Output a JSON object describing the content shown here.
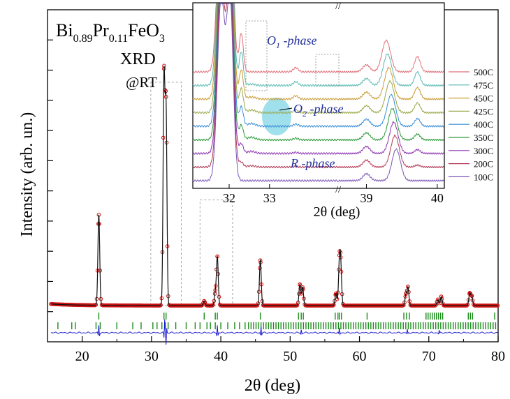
{
  "chart_data": [
    {
      "id": "main",
      "type": "line",
      "title": "",
      "compound": {
        "base1": "Bi",
        "sub1": "0.89",
        "base2": "Pr",
        "sub2": "0.11",
        "base3": "FeO",
        "sub3": "3"
      },
      "annotation_xrd": "XRD",
      "annotation_rt": "@RT",
      "xlabel": "2θ (deg)",
      "ylabel": "Intensity (arb. un.)",
      "xlim": [
        15,
        80
      ],
      "ylim": [
        -10,
        100
      ],
      "xticks": [
        20,
        30,
        40,
        50,
        60,
        70,
        80
      ],
      "yticks_unlabeled": [
        0,
        10,
        20,
        30,
        40,
        50,
        60,
        70,
        80,
        90
      ],
      "background_level": 2,
      "peaks": [
        {
          "x": 22.4,
          "h": 30
        },
        {
          "x": 31.8,
          "h": 74
        },
        {
          "x": 32.1,
          "h": 64
        },
        {
          "x": 37.6,
          "h": 1.5
        },
        {
          "x": 39.2,
          "h": 4
        },
        {
          "x": 39.5,
          "h": 16
        },
        {
          "x": 45.7,
          "h": 15
        },
        {
          "x": 51.4,
          "h": 7
        },
        {
          "x": 51.8,
          "h": 6
        },
        {
          "x": 56.6,
          "h": 4
        },
        {
          "x": 57.1,
          "h": 13
        },
        {
          "x": 57.3,
          "h": 12
        },
        {
          "x": 66.7,
          "h": 3.5
        },
        {
          "x": 67.0,
          "h": 6
        },
        {
          "x": 71.3,
          "h": 2
        },
        {
          "x": 71.8,
          "h": 3
        },
        {
          "x": 75.9,
          "h": 4
        },
        {
          "x": 76.2,
          "h": 3
        }
      ],
      "bragg_row1": [
        22.4,
        31.8,
        32.1,
        37.6,
        39.2,
        39.5,
        45.7,
        51.2,
        51.6,
        51.9,
        56.5,
        56.9,
        57.1,
        57.4,
        61.1,
        66.4,
        66.8,
        67.2,
        69.6,
        69.9,
        70.2,
        70.5,
        70.8,
        71.1,
        71.4,
        71.7,
        72.0,
        75.7,
        76.0,
        76.3,
        79.5
      ],
      "bragg_row2_dense_start": 44,
      "bragg_row2": [
        16.5,
        18.5,
        19.0,
        22.0,
        22.6,
        25.0,
        27.3,
        28.5,
        30.2,
        30.8,
        31.5,
        32.0,
        32.4,
        33.5,
        35.0,
        36.3,
        37.0,
        38.0,
        38.5,
        39.2,
        40.0,
        41.0,
        42.0,
        42.7,
        43.5
      ],
      "diff_spikes": [
        {
          "x": 22.4,
          "a": 2.5
        },
        {
          "x": 31.9,
          "a": 4.5
        },
        {
          "x": 32.1,
          "a": -4
        },
        {
          "x": 39.5,
          "a": 2.5
        },
        {
          "x": 45.8,
          "a": 2
        },
        {
          "x": 51.6,
          "a": 1
        },
        {
          "x": 57.1,
          "a": 1.5
        },
        {
          "x": 66.9,
          "a": 1
        },
        {
          "x": 71.5,
          "a": 0.8
        }
      ],
      "highlight_boxes": [
        {
          "x0": 29.9,
          "x1": 34.3,
          "y0": 2,
          "y1": 76
        },
        {
          "x0": 37.0,
          "x1": 41.7,
          "y0": 2,
          "y1": 37
        }
      ],
      "colors": {
        "observed": "#cc1111",
        "calculated": "#111111",
        "bragg": "#1a8c1a",
        "difference": "#1a1acc",
        "box": "#9aaa9a"
      }
    },
    {
      "id": "inset",
      "type": "line",
      "xlabel": "2θ (deg)",
      "xticks_left": [
        32,
        33
      ],
      "xticks_right": [
        39,
        40
      ],
      "xlim_left": [
        31.1,
        34.7
      ],
      "xlim_right": [
        38.6,
        40.1
      ],
      "break_symbol": "//",
      "series": [
        {
          "name": "500C",
          "color": "#e0707a"
        },
        {
          "name": "475C",
          "color": "#55b8b0"
        },
        {
          "name": "450C",
          "color": "#c99a30"
        },
        {
          "name": "425C",
          "color": "#9aa84a"
        },
        {
          "name": "400C",
          "color": "#3a8fd8"
        },
        {
          "name": "350C",
          "color": "#2d9a3a"
        },
        {
          "name": "300C",
          "color": "#8b2fb0"
        },
        {
          "name": "200C",
          "color": "#b23a55"
        },
        {
          "name": "100C",
          "color": "#7a55b8"
        }
      ],
      "labels": {
        "o1": "O",
        "o1_sub": "1",
        "o1_suffix": " -phase",
        "o2": "O",
        "o2_sub": "2",
        "o2_suffix": " -phase",
        "r": "R -phase"
      },
      "o2_highlight_color": "#7fd6e6"
    }
  ]
}
